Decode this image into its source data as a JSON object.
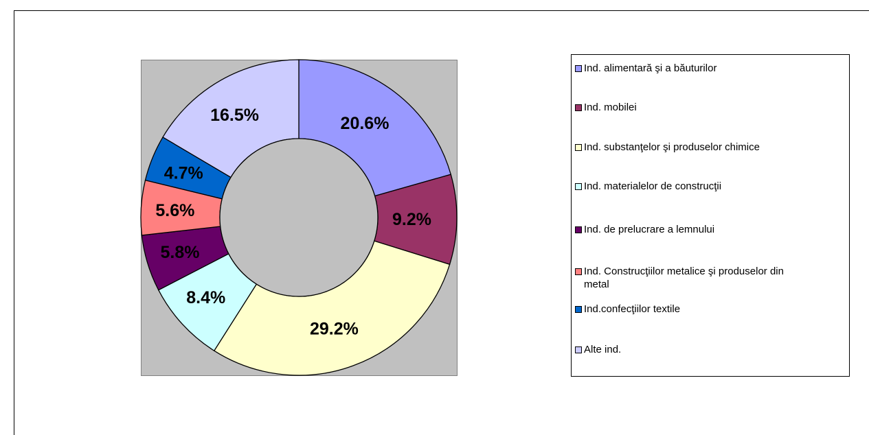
{
  "chart_data": {
    "type": "donut",
    "categories": [
      "Ind. alimentară şi a băuturilor",
      "Ind. mobilei",
      "Ind. substanţelor şi produselor chimice",
      "Ind. materialelor de construcţii",
      "Ind. de prelucrare a lemnului",
      "Ind. Construcţiilor metalice şi produselor din metal",
      "Ind.confecţiilor textile",
      "Alte ind."
    ],
    "values": [
      20.6,
      9.2,
      29.2,
      8.4,
      5.8,
      5.6,
      4.7,
      16.5
    ],
    "value_labels": [
      "20.6%",
      "9.2%",
      "29.2%",
      "8.4%",
      "5.8%",
      "5.6%",
      "4.7%",
      "16.5%"
    ],
    "colors": [
      "#9999ff",
      "#993366",
      "#ffffcc",
      "#ccffff",
      "#660066",
      "#ff8080",
      "#0066cc",
      "#ccccff"
    ],
    "legend": "right"
  }
}
